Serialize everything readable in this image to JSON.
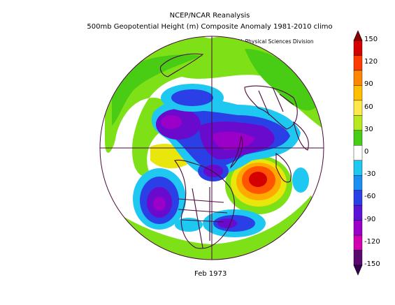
{
  "header": {
    "title_line1": "NCEP/NCAR Reanalysis",
    "title_line2": "500mb Geopotential Height (m) Composite Anomaly 1981-2010 climo",
    "credit": "NOAA/ESRL Physical Sciences Division"
  },
  "caption": "Feb 1973",
  "colorbar": {
    "levels": [
      {
        "label": "150",
        "color": "#b30000"
      },
      {
        "label": "120",
        "color": "#ff5500"
      },
      {
        "label": "90",
        "color": "#ffaa00"
      },
      {
        "label": "60",
        "color": "#e8e60a"
      },
      {
        "label": "30",
        "color": "#7ee017"
      },
      {
        "label": "0",
        "color": "#ffffff"
      },
      {
        "label": "-30",
        "color": "#1ec8f0"
      },
      {
        "label": "-60",
        "color": "#2a3fe6"
      },
      {
        "label": "-90",
        "color": "#6a0acd"
      },
      {
        "label": "-120",
        "color": "#b8009a"
      },
      {
        "label": "-150",
        "color": "#5a0a6e"
      }
    ],
    "segment_colors": [
      "#d40000",
      "#ff3a00",
      "#ff8800",
      "#ffbe00",
      "#ffe84a",
      "#b8e81e",
      "#48cc14",
      "#ffffff",
      "#1ec8f0",
      "#1a8ff0",
      "#2a3fe6",
      "#5a14d8",
      "#9a00c8",
      "#d000b0",
      "#5a0a6e"
    ]
  },
  "map": {
    "projection": "north-polar-stereographic",
    "features": [
      "coastlines",
      "country-borders",
      "state-borders",
      "meridian-grid"
    ],
    "anomaly_features": [
      {
        "name": "strong-positive-anomaly",
        "region": "north-atlantic",
        "peak": "above 120"
      },
      {
        "name": "positive-anomaly",
        "region": "north-pacific-west",
        "peak": "30-60"
      },
      {
        "name": "negative-anomaly",
        "region": "arctic-siberia",
        "peak": "below -120"
      },
      {
        "name": "negative-anomaly",
        "region": "north-pacific-east",
        "peak": "-120"
      },
      {
        "name": "negative-anomaly",
        "region": "eastern-north-america",
        "peak": "-90"
      }
    ]
  }
}
